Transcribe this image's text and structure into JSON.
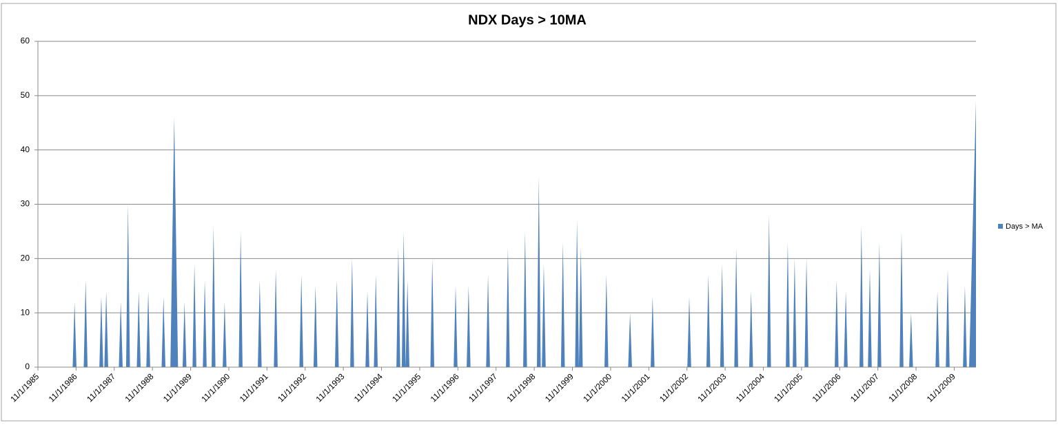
{
  "chart_data": {
    "type": "area",
    "title": "NDX Days > 10MA",
    "xlim": [
      1985.83,
      2010.4
    ],
    "ylim": [
      0,
      60
    ],
    "yticks": [
      0,
      10,
      20,
      30,
      40,
      50,
      60
    ],
    "grid": true,
    "legend": "right",
    "xticks": [
      {
        "value": 1985.83,
        "label": "11/1/1985"
      },
      {
        "value": 1986.83,
        "label": "11/1/1986"
      },
      {
        "value": 1987.83,
        "label": "11/1/1987"
      },
      {
        "value": 1988.83,
        "label": "11/1/1988"
      },
      {
        "value": 1989.83,
        "label": "11/1/1989"
      },
      {
        "value": 1990.83,
        "label": "11/1/1990"
      },
      {
        "value": 1991.83,
        "label": "11/1/1991"
      },
      {
        "value": 1992.83,
        "label": "11/1/1992"
      },
      {
        "value": 1993.83,
        "label": "11/1/1993"
      },
      {
        "value": 1994.83,
        "label": "11/1/1994"
      },
      {
        "value": 1995.83,
        "label": "11/1/1995"
      },
      {
        "value": 1996.83,
        "label": "11/1/1996"
      },
      {
        "value": 1997.83,
        "label": "11/1/1997"
      },
      {
        "value": 1998.83,
        "label": "11/1/1998"
      },
      {
        "value": 1999.83,
        "label": "11/1/1999"
      },
      {
        "value": 2000.83,
        "label": "11/1/2000"
      },
      {
        "value": 2001.83,
        "label": "11/1/2001"
      },
      {
        "value": 2002.83,
        "label": "11/1/2002"
      },
      {
        "value": 2003.83,
        "label": "11/1/2003"
      },
      {
        "value": 2004.83,
        "label": "11/1/2004"
      },
      {
        "value": 2005.83,
        "label": "11/1/2005"
      },
      {
        "value": 2006.83,
        "label": "11/1/2006"
      },
      {
        "value": 2007.83,
        "label": "11/1/2007"
      },
      {
        "value": 2008.83,
        "label": "11/1/2008"
      },
      {
        "value": 2009.83,
        "label": "11/1/2009"
      }
    ],
    "x": [
      1986.74,
      1986.79,
      1986.84,
      1987.03,
      1987.08,
      1987.13,
      1987.44,
      1987.49,
      1987.54,
      1987.57,
      1987.62,
      1987.67,
      1987.95,
      1988.0,
      1988.05,
      1988.14,
      1988.19,
      1988.24,
      1988.42,
      1988.47,
      1988.52,
      1988.67,
      1988.72,
      1988.77,
      1989.07,
      1989.12,
      1989.17,
      1989.3,
      1989.4,
      1989.5,
      1989.62,
      1989.67,
      1989.72,
      1989.88,
      1989.93,
      1989.98,
      1990.15,
      1990.2,
      1990.25,
      1990.38,
      1990.43,
      1990.48,
      1990.67,
      1990.72,
      1990.77,
      1991.09,
      1991.14,
      1991.19,
      1991.59,
      1991.64,
      1991.69,
      1992.01,
      1992.06,
      1992.11,
      1992.68,
      1992.73,
      1992.78,
      1993.05,
      1993.1,
      1993.15,
      1993.61,
      1993.66,
      1993.71,
      1994.01,
      1994.06,
      1994.11,
      1994.41,
      1994.46,
      1994.51,
      1994.63,
      1994.68,
      1994.73,
      1995.22,
      1995.27,
      1995.32,
      1995.36,
      1995.41,
      1995.46,
      1995.46,
      1995.51,
      1995.56,
      1996.11,
      1996.16,
      1996.21,
      1996.72,
      1996.77,
      1996.82,
      1997.06,
      1997.11,
      1997.16,
      1997.57,
      1997.62,
      1997.67,
      1998.09,
      1998.14,
      1998.19,
      1998.54,
      1998.59,
      1998.64,
      1998.9,
      1998.95,
      1999.0,
      1999.03,
      1999.08,
      1999.13,
      1999.53,
      1999.58,
      1999.63,
      1999.9,
      1999.95,
      2000.0,
      2000.0,
      2000.05,
      2000.1,
      2000.67,
      2000.72,
      2000.77,
      2001.29,
      2001.34,
      2001.39,
      2001.88,
      2001.93,
      2001.98,
      2002.84,
      2002.89,
      2002.94,
      2003.34,
      2003.39,
      2003.44,
      2003.7,
      2003.75,
      2003.8,
      2004.07,
      2004.12,
      2004.17,
      2004.46,
      2004.51,
      2004.56,
      2004.93,
      2004.98,
      2005.03,
      2005.42,
      2005.47,
      2005.52,
      2005.6,
      2005.65,
      2005.7,
      2005.91,
      2005.96,
      2006.01,
      2006.7,
      2006.75,
      2006.8,
      2006.94,
      2006.99,
      2007.04,
      2007.35,
      2007.4,
      2007.45,
      2007.57,
      2007.62,
      2007.67,
      2007.82,
      2007.87,
      2007.92,
      2008.4,
      2008.45,
      2008.5,
      2008.65,
      2008.7,
      2008.75,
      2009.34,
      2009.39,
      2009.44,
      2009.61,
      2009.66,
      2009.71,
      2010.06,
      2010.11,
      2010.16,
      2010.22,
      2010.4
    ],
    "series": [
      {
        "name": "Days > MA",
        "color": "#4f81bd",
        "values": [
          0,
          12,
          0,
          0,
          16,
          0,
          0,
          13,
          0,
          0,
          14,
          0,
          0,
          12,
          0,
          0,
          30,
          0,
          0,
          14,
          0,
          0,
          14,
          0,
          0,
          13,
          0,
          0,
          46,
          0,
          0,
          12,
          0,
          0,
          19,
          0,
          0,
          16,
          0,
          0,
          26,
          0,
          0,
          12,
          0,
          0,
          25,
          0,
          0,
          16,
          0,
          0,
          18,
          0,
          0,
          17,
          0,
          0,
          15,
          0,
          0,
          16,
          0,
          0,
          20,
          0,
          0,
          14,
          0,
          0,
          17,
          0,
          0,
          22,
          0,
          0,
          25,
          0,
          0,
          16,
          0,
          0,
          20,
          0,
          0,
          15,
          0,
          0,
          15,
          0,
          0,
          17,
          0,
          0,
          22,
          0,
          0,
          25,
          0,
          0,
          35,
          0,
          0,
          19,
          0,
          0,
          23,
          0,
          0,
          27,
          0,
          0,
          22,
          0,
          0,
          17,
          0,
          0,
          10,
          0,
          0,
          13,
          0,
          0,
          13,
          0,
          0,
          17,
          0,
          0,
          19,
          0,
          0,
          22,
          0,
          0,
          14,
          0,
          0,
          28,
          0,
          0,
          23,
          0,
          0,
          20,
          0,
          0,
          20,
          0,
          0,
          16,
          0,
          0,
          14,
          0,
          0,
          26,
          0,
          0,
          18,
          0,
          0,
          23,
          0,
          0,
          25,
          0,
          0,
          10,
          0,
          0,
          14,
          0,
          0,
          18,
          0,
          0,
          15,
          0,
          0,
          49
        ]
      }
    ]
  }
}
